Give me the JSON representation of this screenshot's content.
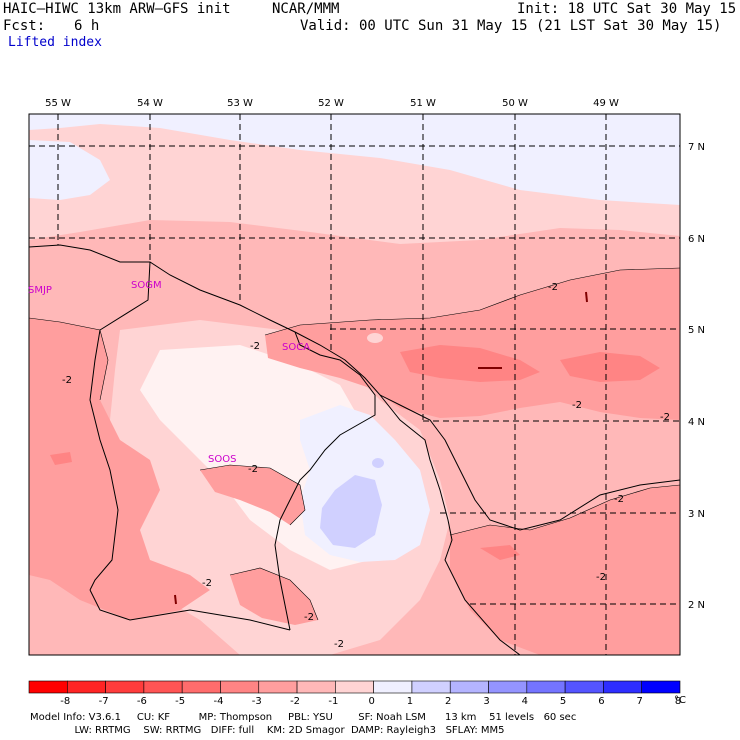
{
  "header": {
    "model_title": "HAIC–HIWC 13km ARW–GFS init",
    "center": "NCAR/MMM",
    "init": "Init: 18 UTC Sat 30 May 15",
    "fcst_label": "Fcst:",
    "fcst_value": "6 h",
    "valid": "Valid: 00 UTC Sun 31 May 15 (21 LST Sat 30 May 15)",
    "field": "Lifted index"
  },
  "longitude_labels": [
    "55 W",
    "54 W",
    "53 W",
    "52 W",
    "51 W",
    "50 W",
    "49 W"
  ],
  "latitude_labels": [
    "7 N",
    "6 N",
    "5 N",
    "4 N",
    "3 N",
    "2 N"
  ],
  "stations": [
    "SMJP",
    "SOGM",
    "SOCA",
    "SOOS"
  ],
  "contour_labels": [
    "-2",
    "-2",
    "-2",
    "-2",
    "-2",
    "-2",
    "-2",
    "-2",
    "-2",
    "-2",
    "-2"
  ],
  "colorbar": {
    "unit": "°C",
    "ticks": [
      "-8",
      "-7",
      "-6",
      "-5",
      "-4",
      "-3",
      "-2",
      "-1",
      "0",
      "1",
      "2",
      "3",
      "4",
      "5",
      "6",
      "7",
      "8"
    ],
    "colors": [
      "#ff0000",
      "#ff2424",
      "#ff3c3c",
      "#ff5454",
      "#ff6c6c",
      "#ff8484",
      "#ff9e9e",
      "#ffb8b8",
      "#ffd4d4",
      "#f0f0ff",
      "#d0d0ff",
      "#b4b4ff",
      "#9494ff",
      "#7474ff",
      "#5454ff",
      "#2e2eff",
      "#0000ff"
    ]
  },
  "footer": {
    "line1": "Model Info: V3.6.1     CU: KF         MP: Thompson     PBL: YSU        SF: Noah LSM      13 km    51 levels   60 sec",
    "line2": "              LW: RRTMG    SW: RRTMG   DIFF: full    KM: 2D Smagor  DAMP: Rayleigh3   SFLAY: MM5"
  }
}
